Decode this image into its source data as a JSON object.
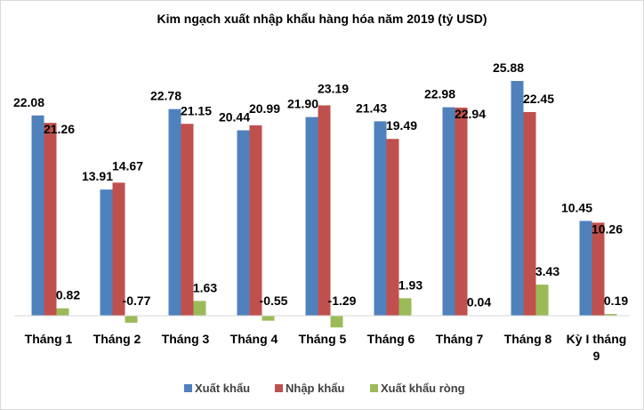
{
  "chart_data": {
    "type": "bar",
    "title": "Kim ngạch xuất nhập khẩu hàng hóa năm 2019 (tỷ USD)",
    "xlabel": "",
    "ylabel": "",
    "grid": false,
    "legend_position": "bottom",
    "categories": [
      "Tháng 1",
      "Tháng 2",
      "Tháng 3",
      "Tháng 4",
      "Tháng 5",
      "Tháng 6",
      "Tháng 7",
      "Tháng 8",
      [
        "Kỳ I tháng",
        "9"
      ]
    ],
    "series": [
      {
        "name": "Xuất khẩu",
        "color": "#4f81bd",
        "values": [
          22.08,
          13.91,
          22.78,
          20.44,
          21.9,
          21.43,
          22.98,
          25.88,
          10.45
        ]
      },
      {
        "name": "Nhập khẩu",
        "color": "#c0504d",
        "values": [
          21.26,
          14.67,
          21.15,
          20.99,
          23.19,
          19.49,
          22.94,
          22.45,
          10.26
        ]
      },
      {
        "name": "Xuất khẩu ròng",
        "color": "#9bbb59",
        "values": [
          0.82,
          -0.77,
          1.63,
          -0.55,
          -1.29,
          1.93,
          0.04,
          3.43,
          0.19
        ]
      }
    ],
    "labels": [
      [
        "22.08",
        "13.91",
        "22.78",
        "20.44",
        "21.90",
        "21.43",
        "22.98",
        "25.88",
        "10.45"
      ],
      [
        "21.26",
        "14.67",
        "21.15",
        "20.99",
        "23.19",
        "19.49",
        "22.94",
        "22.45",
        "10.26"
      ],
      [
        "0.82",
        "-0.77",
        "1.63",
        "-0.55",
        "-1.29",
        "1.93",
        "0.04",
        "3.43",
        "0.19"
      ]
    ],
    "ylim": [
      -2,
      27
    ]
  }
}
